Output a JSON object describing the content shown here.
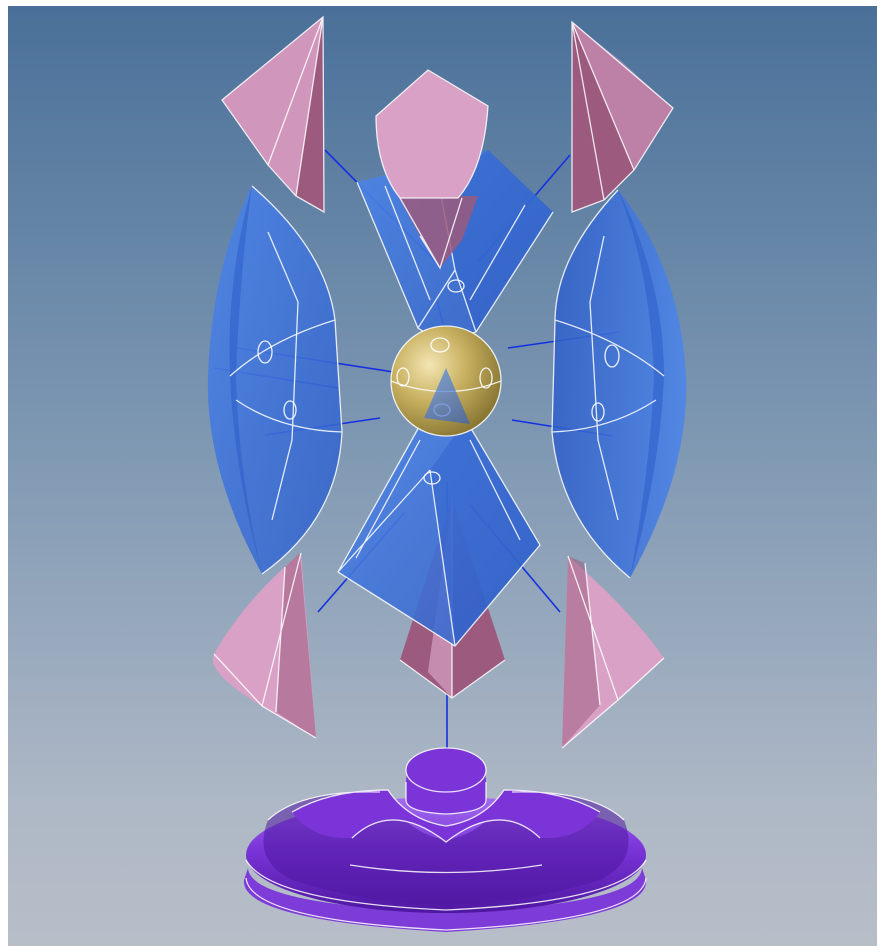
{
  "scene": {
    "view": "exploded-assembly",
    "background_colors": [
      "#4a7099",
      "#7d97b2",
      "#aeb8c6",
      "#b7bec8"
    ],
    "colors": {
      "frame": "#ffffff",
      "blue_part": "#4f86e8",
      "blue_part_dark": "#2f5fc9",
      "pink_part": "#d9a1c6",
      "pink_part_dark": "#9c5a7e",
      "gold_sphere": "#c8b060",
      "gold_sphere_dark": "#7e6d2c",
      "purple_base": "#7a34d8",
      "purple_base_dark": "#4e17a0",
      "explode_line": "#1530e0",
      "edge_line": "#ffffff"
    },
    "parts": {
      "hub": "gold-sphere",
      "arms": [
        "top-arm",
        "bottom-arm",
        "left-wing",
        "right-wing"
      ],
      "caps": [
        "top-shield-cap",
        "top-left-cone",
        "top-right-cone",
        "bottom-left-cone",
        "bottom-center-cone",
        "bottom-right-cone"
      ],
      "stand": "purple-base"
    }
  }
}
